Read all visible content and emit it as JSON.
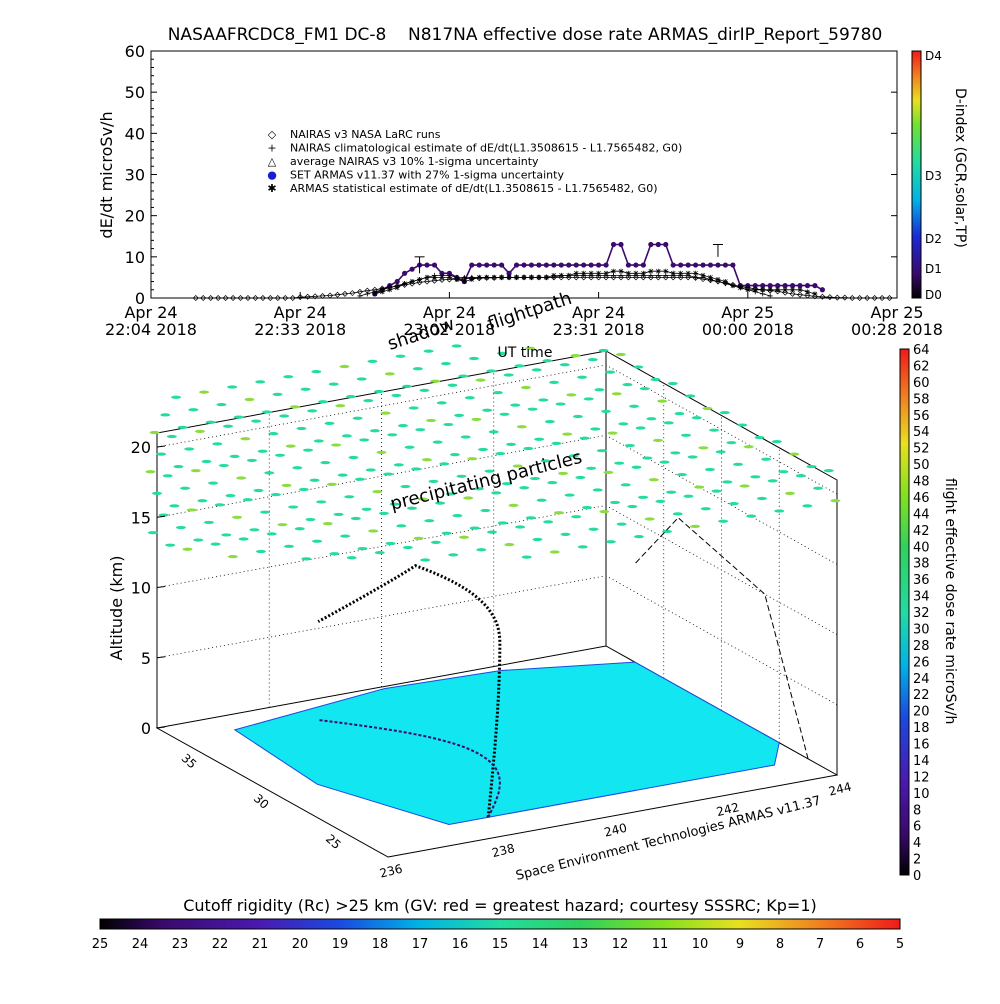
{
  "chart_data": [
    {
      "type": "line",
      "title": "NASAAFRCDC8_FM1 DC-8    N817NA effective dose rate ARMAS_dirIP_Report_59780",
      "xlabel": "UT time",
      "ylabel": "dE/dt microSv/h",
      "ylim": [
        0,
        60
      ],
      "yticks": [
        0,
        10,
        20,
        30,
        40,
        50,
        60
      ],
      "xticks": [
        {
          "day": "Apr 24",
          "time": "22:04 2018"
        },
        {
          "day": "Apr 24",
          "time": "22:33 2018"
        },
        {
          "day": "Apr 24",
          "time": "23:02 2018"
        },
        {
          "day": "Apr 24",
          "time": "23:31 2018"
        },
        {
          "day": "Apr 25",
          "time": "00:00 2018"
        },
        {
          "day": "Apr 25",
          "time": "00:28 2018"
        }
      ],
      "legend": [
        {
          "symbol": "◇",
          "label": "NAIRAS v3 NASA LaRC runs",
          "color": "#000000"
        },
        {
          "symbol": "+",
          "label": "NAIRAS climatological estimate of dE/dt(L1.3508615 - L1.7565482, G0)",
          "color": "#000000"
        },
        {
          "symbol": "△",
          "label": "average NAIRAS v3 10% 1-sigma uncertainty",
          "color": "#000000"
        },
        {
          "symbol": "●",
          "label": "SET ARMAS v11.37 with 27% 1-sigma uncertainty",
          "color": "#1a1ad8"
        },
        {
          "symbol": "✱",
          "label": "ARMAS statistical estimate of dE/dt(L1.3508615 - L1.7565482, G0)",
          "color": "#000000"
        }
      ],
      "legend_position": "center",
      "d_index_bar": {
        "title": "D-index (GCR,solar,TP)",
        "labels": [
          "D4",
          "D3",
          "D2",
          "D1",
          "D0"
        ]
      },
      "x": [
        0.3,
        0.35,
        0.4,
        0.45,
        0.5,
        0.55,
        0.6,
        0.65,
        0.7,
        0.75,
        0.8,
        0.85,
        0.9,
        0.95,
        1.0,
        1.05,
        1.1,
        1.15,
        1.2,
        1.25,
        1.3,
        1.35,
        1.4,
        1.45,
        1.5,
        1.55,
        1.6,
        1.65,
        1.7,
        1.75,
        1.8,
        1.85,
        1.9,
        1.95,
        2.0,
        2.05,
        2.1,
        2.15,
        2.2,
        2.25,
        2.3,
        2.35,
        2.4,
        2.45,
        2.5,
        2.55,
        2.6,
        2.65,
        2.7,
        2.75,
        2.8,
        2.85,
        2.9,
        2.95,
        3.0,
        3.05,
        3.1,
        3.15,
        3.2,
        3.25,
        3.3,
        3.35,
        3.4,
        3.45,
        3.5,
        3.55,
        3.6,
        3.65,
        3.7,
        3.75,
        3.8,
        3.85,
        3.9,
        3.95,
        4.0,
        4.05,
        4.1,
        4.15,
        4.2,
        4.25,
        4.3,
        4.35,
        4.4,
        4.45,
        4.5,
        4.55,
        4.6,
        4.65,
        4.7,
        4.75,
        4.8,
        4.85,
        4.9,
        4.95
      ],
      "series": [
        {
          "key": "armas_set",
          "color": "#3a0a6e",
          "marker": "dot",
          "values": [
            null,
            null,
            null,
            null,
            null,
            null,
            null,
            null,
            null,
            null,
            null,
            null,
            null,
            null,
            null,
            null,
            null,
            null,
            null,
            null,
            null,
            null,
            null,
            null,
            1,
            2,
            3,
            4,
            6,
            7,
            8,
            8,
            8,
            6,
            6,
            5,
            4,
            8,
            8,
            8,
            8,
            8,
            6,
            8,
            8,
            8,
            8,
            8,
            8,
            8,
            8,
            8,
            8,
            8,
            8,
            8,
            13,
            13,
            8,
            8,
            8,
            13,
            13,
            13,
            8,
            8,
            8,
            8,
            8,
            8,
            8,
            8,
            8,
            3,
            3,
            3,
            3,
            3,
            3,
            3,
            3,
            3,
            3,
            3,
            2,
            null,
            null,
            null,
            null,
            null,
            null,
            null,
            null,
            null
          ]
        },
        {
          "key": "nairas_runs",
          "color": "#000000",
          "marker": "diamond",
          "values": [
            0,
            0,
            0,
            0,
            0,
            0,
            0,
            0,
            0,
            0,
            0,
            0,
            0,
            0,
            0.2,
            0.3,
            0.4,
            0.5,
            0.6,
            0.8,
            1.0,
            1.2,
            1.5,
            1.8,
            2.0,
            2.3,
            2.6,
            2.9,
            3.2,
            3.5,
            3.8,
            4.0,
            4.2,
            4.4,
            4.5,
            4.6,
            4.7,
            4.8,
            4.8,
            4.9,
            4.9,
            5.0,
            5.0,
            5.0,
            5.0,
            5.0,
            5.0,
            5.0,
            5.0,
            5.0,
            5.0,
            5.0,
            5.0,
            5.0,
            5.0,
            5.0,
            5.0,
            5.0,
            5.0,
            5.0,
            5.0,
            5.0,
            5.0,
            5.0,
            5.0,
            5.0,
            5.0,
            4.9,
            4.6,
            4.3,
            4.0,
            3.6,
            3.2,
            2.8,
            2.5,
            2.2,
            2.0,
            1.8,
            1.6,
            1.3,
            1.0,
            0.8,
            0.6,
            0.4,
            0.3,
            0.2,
            0.1,
            0.1,
            0,
            0,
            0,
            0,
            0,
            0
          ]
        },
        {
          "key": "nairas_clim",
          "color": "#000000",
          "marker": "plus",
          "values": [
            null,
            null,
            null,
            null,
            null,
            null,
            null,
            null,
            null,
            null,
            null,
            null,
            null,
            null,
            null,
            null,
            null,
            null,
            null,
            null,
            null,
            null,
            0.5,
            1.0,
            1.5,
            2.0,
            2.5,
            3.0,
            3.5,
            4.0,
            4.5,
            5.0,
            5.5,
            5.5,
            5.5,
            5.0,
            5.0,
            5.0,
            5.0,
            5.0,
            5.0,
            5.0,
            5.0,
            5.0,
            5.0,
            5.0,
            5.0,
            5.0,
            5.0,
            5.5,
            5.5,
            5.5,
            5.5,
            5.5,
            5.5,
            5.5,
            5.5,
            5.5,
            5.5,
            5.5,
            5.5,
            5.5,
            5.5,
            5.5,
            5.5,
            5.5,
            5.5,
            5.0,
            5.0,
            4.5,
            4.0,
            3.5,
            3.0,
            2.5,
            2.0,
            1.5,
            1.0,
            0.5,
            null,
            null,
            null,
            null,
            null,
            null,
            null,
            null,
            null,
            null,
            null,
            null,
            null,
            null,
            null,
            null
          ]
        },
        {
          "key": "armas_stat",
          "color": "#000000",
          "marker": "asterisk",
          "values": [
            null,
            null,
            null,
            null,
            null,
            null,
            null,
            null,
            null,
            null,
            null,
            null,
            null,
            null,
            null,
            null,
            null,
            null,
            null,
            null,
            null,
            null,
            null,
            null,
            1.0,
            1.5,
            2.0,
            2.5,
            3.5,
            4.0,
            4.5,
            5.0,
            5.0,
            5.0,
            5.0,
            4.5,
            4.0,
            4.5,
            5.0,
            5.0,
            5.0,
            5.0,
            5.0,
            5.0,
            5.0,
            5.0,
            5.0,
            5.0,
            5.5,
            5.5,
            5.5,
            6.0,
            6.0,
            6.0,
            6.0,
            6.0,
            6.5,
            6.5,
            6.0,
            6.0,
            6.0,
            6.5,
            6.5,
            6.5,
            6.0,
            6.0,
            6.0,
            6.0,
            5.5,
            5.0,
            4.5,
            4.0,
            3.0,
            2.5,
            2.0,
            2.0,
            2.0,
            2.0,
            2.0,
            2.0,
            2.0,
            2.0,
            1.5,
            1.0,
            null,
            null,
            null,
            null,
            null,
            null,
            null,
            null,
            null,
            null
          ]
        }
      ],
      "errorbars": [
        {
          "x": 1.8,
          "low": 6,
          "high": 10
        },
        {
          "x": 3.8,
          "low": 10,
          "high": 13
        }
      ]
    },
    {
      "type": "scatter",
      "ylabel": "Altitude (km)",
      "zticks": [
        0,
        5,
        10,
        15,
        20
      ],
      "lat_ticks": [
        25,
        30,
        35
      ],
      "lon_ticks": [
        236,
        238,
        240,
        242,
        244
      ],
      "annotations": {
        "flightpath": "flightpath",
        "shadow": "shadow",
        "precipitating": "precipitating particles",
        "credit": "Space Environment Technologies ARMAS v11.37"
      },
      "dose_colorbar": {
        "title": "flight effective dose rate microSv/h",
        "range": [
          0,
          64
        ],
        "ticks": [
          0,
          2,
          4,
          6,
          8,
          10,
          12,
          14,
          16,
          18,
          20,
          22,
          24,
          26,
          28,
          30,
          32,
          34,
          36,
          38,
          40,
          42,
          44,
          46,
          48,
          50,
          52,
          54,
          56,
          58,
          60,
          62,
          64
        ]
      },
      "cutoff_colorbar": {
        "title": "Cutoff rigidity (Rc) >25 km (GV: red = greatest hazard; courtesy SSSRC; Kp=1)",
        "ticks": [
          25,
          24,
          23,
          22,
          21,
          20,
          19,
          18,
          17,
          16,
          15,
          14,
          13,
          12,
          11,
          10,
          9,
          8,
          7,
          6,
          5
        ]
      },
      "colors": {
        "particles": "#22dca0",
        "cutoff_field": "#12e6f0",
        "flightpath": "#000000",
        "shadow": "#3a0a6e"
      }
    }
  ]
}
